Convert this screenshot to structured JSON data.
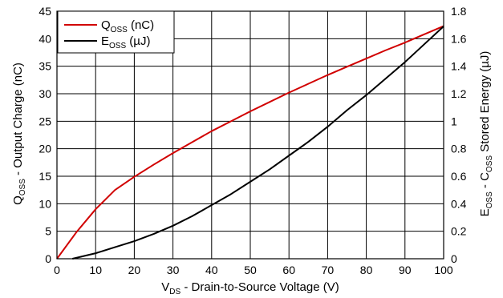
{
  "chart_data": {
    "type": "line",
    "xlabel": {
      "main": "V",
      "sub": "DS",
      "rest": " - Drain-to-Source Voltage (V)"
    },
    "ylabel_left": {
      "main": "Q",
      "sub": "OSS",
      "rest": " - Output Charge (nC)"
    },
    "ylabel_right": {
      "main": "E",
      "sub": "OSS",
      "mid": " - C",
      "sub2": "OSS",
      "rest": " Stored Energy (µJ)"
    },
    "xlim": [
      0,
      100
    ],
    "ylim_left": [
      0,
      45
    ],
    "ylim_right": [
      0,
      1.8
    ],
    "x_ticks": [
      "0",
      "10",
      "20",
      "30",
      "40",
      "50",
      "60",
      "70",
      "80",
      "90",
      "100"
    ],
    "y_left_ticks": [
      "0",
      "5",
      "10",
      "15",
      "20",
      "25",
      "30",
      "35",
      "40",
      "45"
    ],
    "y_right_ticks": [
      "0",
      "0.2",
      "0.4",
      "0.6",
      "0.8",
      "1",
      "1.2",
      "1.4",
      "1.6",
      "1.8"
    ],
    "grid": true,
    "legend_position": "top-left",
    "series": [
      {
        "name": {
          "main": "Q",
          "sub": "OSS",
          "rest": " (nC)"
        },
        "axis": "left",
        "color": "#d10000",
        "x": [
          0,
          5,
          10,
          15,
          20,
          25,
          30,
          35,
          40,
          45,
          50,
          55,
          60,
          65,
          70,
          75,
          80,
          85,
          90,
          95,
          100
        ],
        "y": [
          0,
          4.8,
          9.0,
          12.5,
          14.9,
          17.1,
          19.2,
          21.2,
          23.2,
          25.0,
          26.8,
          28.5,
          30.2,
          31.8,
          33.4,
          34.9,
          36.4,
          37.9,
          39.3,
          40.8,
          42.3
        ]
      },
      {
        "name": {
          "main": "E",
          "sub": "OSS",
          "rest": " (µJ)"
        },
        "axis": "right",
        "color": "#000000",
        "x": [
          4,
          10,
          15,
          20,
          25,
          30,
          35,
          40,
          45,
          50,
          55,
          60,
          65,
          70,
          75,
          80,
          85,
          90,
          95,
          100
        ],
        "y": [
          0,
          0.04,
          0.084,
          0.128,
          0.18,
          0.24,
          0.31,
          0.39,
          0.47,
          0.56,
          0.65,
          0.75,
          0.85,
          0.96,
          1.08,
          1.19,
          1.31,
          1.43,
          1.56,
          1.69
        ]
      }
    ]
  }
}
